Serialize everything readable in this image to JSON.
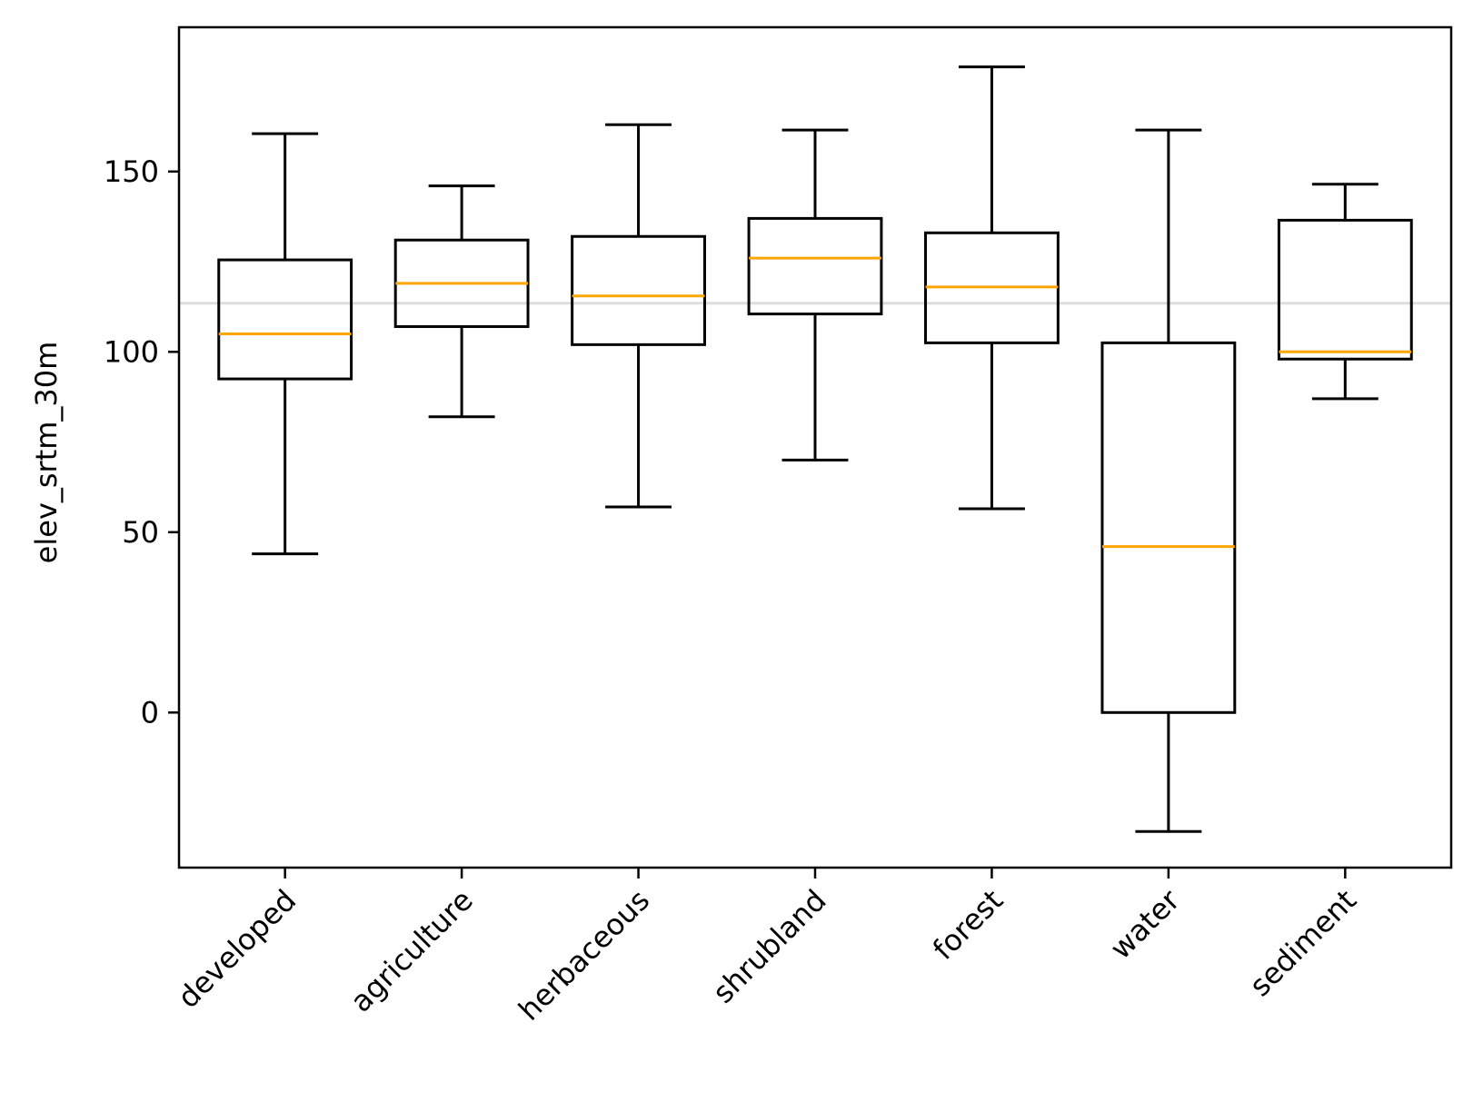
{
  "chart_data": {
    "type": "boxplot",
    "title": "",
    "xlabel": "",
    "ylabel": "elev_srtm_30m",
    "ylim": [
      -43,
      190
    ],
    "yticks": [
      0,
      50,
      100,
      150
    ],
    "reference_line": 113.5,
    "categories": [
      "developed",
      "agriculture",
      "herbaceous",
      "shrubland",
      "forest",
      "water",
      "sediment"
    ],
    "boxes": [
      {
        "name": "developed",
        "whisker_low": 44,
        "q1": 92.5,
        "median": 105,
        "q3": 125.5,
        "whisker_high": 160.5
      },
      {
        "name": "agriculture",
        "whisker_low": 82,
        "q1": 107,
        "median": 119,
        "q3": 131,
        "whisker_high": 146
      },
      {
        "name": "herbaceous",
        "whisker_low": 57,
        "q1": 102,
        "median": 115.5,
        "q3": 132,
        "whisker_high": 163
      },
      {
        "name": "shrubland",
        "whisker_low": 70,
        "q1": 110.5,
        "median": 126,
        "q3": 137,
        "whisker_high": 161.5
      },
      {
        "name": "forest",
        "whisker_low": 56.5,
        "q1": 102.5,
        "median": 118,
        "q3": 133,
        "whisker_high": 179
      },
      {
        "name": "water",
        "whisker_low": -33,
        "q1": 0,
        "median": 46,
        "q3": 102.5,
        "whisker_high": 161.5
      },
      {
        "name": "sediment",
        "whisker_low": 87,
        "q1": 98,
        "median": 100,
        "q3": 136.5,
        "whisker_high": 146.5
      }
    ],
    "colors": {
      "box": "#000000",
      "median": "#ffa500",
      "reference_line": "#dddddd"
    }
  }
}
